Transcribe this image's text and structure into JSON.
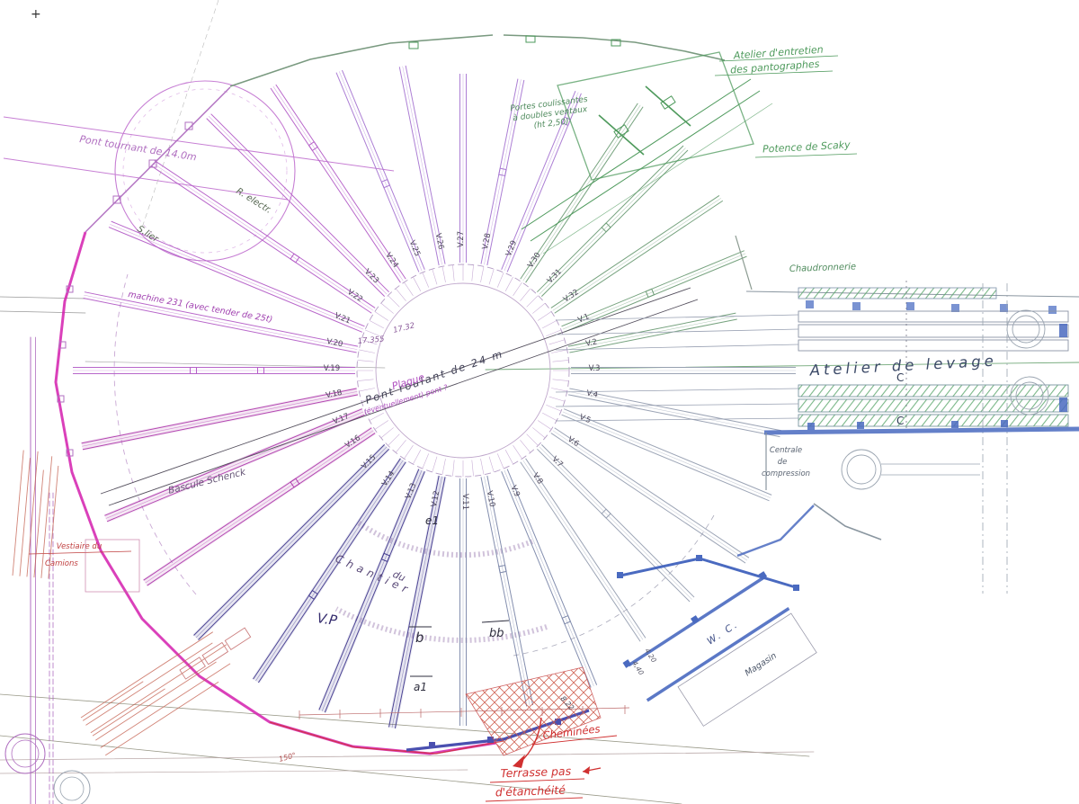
{
  "colors": {
    "purple": "#b06fc0",
    "magenta": "#d41fae",
    "green": "#4e9a5c",
    "blue": "#4a6ac0",
    "indigo": "#4a50b0",
    "red": "#d03030",
    "annotation_red": "#c25b4a",
    "gray": "#98a0b2"
  },
  "marks": {
    "registration": "+"
  },
  "turntable": {
    "label": "Pont tournant de 14.0m"
  },
  "rotunda": {
    "crane_label": "Pont roulant de 24 m",
    "plaque_label_1": "Plaque",
    "plaque_label_2": "(éventuellement) pont ?",
    "radius_dim_1": "17.32",
    "radius_dim_2": "17.355",
    "chantier_label_1": "Chantier",
    "chantier_label_2": "du",
    "vp_label": "V.P",
    "section_marks": {
      "e1": "e1",
      "b": "b",
      "bb": "bb",
      "a1": "a1"
    },
    "tracks": [
      {
        "label": "V.1",
        "color": "#6f9e78"
      },
      {
        "label": "V.2",
        "color": "#6f9e78"
      },
      {
        "label": "V.3",
        "color": "#97a0b2"
      },
      {
        "label": "V.4",
        "color": "#97a0b2"
      },
      {
        "label": "V.5",
        "color": "#97a0b2"
      },
      {
        "label": "V.6",
        "color": "#97a0b2"
      },
      {
        "label": "V.7",
        "color": "#97a0b2"
      },
      {
        "label": "V.8",
        "color": "#97a0b2"
      },
      {
        "label": "V.9",
        "color": "#7d88aa"
      },
      {
        "label": "V.10",
        "color": "#7d88aa"
      },
      {
        "label": "V.11",
        "color": "#7d88aa"
      },
      {
        "label": "V.12",
        "color": "#453d90"
      },
      {
        "label": "V.13",
        "color": "#453d90"
      },
      {
        "label": "V.14",
        "color": "#453d90"
      },
      {
        "label": "V.15",
        "color": "#453d90"
      },
      {
        "label": "V.16",
        "color": "#b03fae"
      },
      {
        "label": "V.17",
        "color": "#b03fae"
      },
      {
        "label": "V.18",
        "color": "#b03fae"
      },
      {
        "label": "V.19",
        "color": "#b55fc8"
      },
      {
        "label": "V.20",
        "color": "#b55fc8"
      },
      {
        "label": "V.21",
        "color": "#b55fc8"
      },
      {
        "label": "V.22",
        "color": "#b55fc8"
      },
      {
        "label": "V.23",
        "color": "#b55fc8"
      },
      {
        "label": "V.24",
        "color": "#b55fc8"
      },
      {
        "label": "V.25",
        "color": "#a878d2"
      },
      {
        "label": "V.26",
        "color": "#a878d2"
      },
      {
        "label": "V.27",
        "color": "#a878d2"
      },
      {
        "label": "V.28",
        "color": "#a878d2"
      },
      {
        "label": "V.29",
        "color": "#a878d2"
      },
      {
        "label": "V.30",
        "color": "#6f9e78"
      },
      {
        "label": "V.31",
        "color": "#6f9e78"
      },
      {
        "label": "V.32",
        "color": "#6f9e78"
      }
    ]
  },
  "left_annotations": {
    "machine_label": "machine 231 (avec tender de 25t)",
    "r_electr_label": "R. electr.",
    "s_lier_label": "S.lier",
    "bascule_label": "Bascule Schenck",
    "vestiaire_label": "Vestiaire du",
    "camions_label": "Camions",
    "angle_label": "150°"
  },
  "top_annotations": {
    "portes_line1": "Portes coulissantes",
    "portes_line2": "à doubles ventaux",
    "portes_line3": "(ht 2,50)",
    "pantographes_line1": "Atelier d'entretien",
    "pantographes_line2": "des pantographes",
    "potence_label": "Potence de Scaky"
  },
  "right_buildings": {
    "chaudronnerie_label": "Chaudronnerie",
    "atelier_levage_label": "Atelier de levage",
    "section_c_top": "C",
    "section_c_bottom": "C",
    "centrale_line1": "Centrale",
    "centrale_line2": "de",
    "centrale_line3": "compression",
    "wc_label": "W. C.",
    "magasin_label": "Magasin"
  },
  "bottom_annotations": {
    "cheminees_label": "Cheminées",
    "terrasse_line1": "Terrasse pas",
    "terrasse_line2": "d'étanchéité",
    "dim_440": "4,40",
    "dim_420": "4,20",
    "dim_822": "8.22"
  }
}
